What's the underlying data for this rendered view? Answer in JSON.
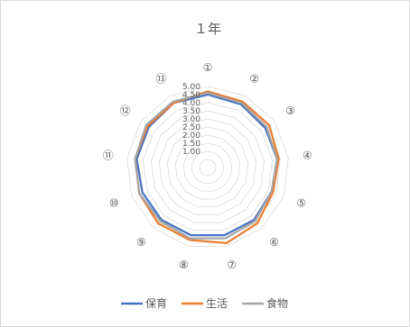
{
  "chart_data": {
    "type": "radar",
    "title": "１年",
    "categories": [
      "①",
      "②",
      "③",
      "④",
      "⑤",
      "⑥",
      "⑦",
      "⑧",
      "⑨",
      "⑩",
      "⑪",
      "⑫",
      "⑬"
    ],
    "rlim": [
      0,
      5
    ],
    "rticks": [
      "1.00",
      "1.50",
      "2.00",
      "2.50",
      "3.00",
      "3.50",
      "4.00",
      "4.50",
      "5.00"
    ],
    "grid": true,
    "legend_position": "bottom",
    "series": [
      {
        "name": "保育",
        "color": "#4472c4",
        "values": [
          4.5,
          4.4,
          4.3,
          4.3,
          4.2,
          4.3,
          4.3,
          4.3,
          4.3,
          4.3,
          4.4,
          4.4,
          4.5
        ]
      },
      {
        "name": "生活",
        "color": "#ed7d31",
        "values": [
          4.7,
          4.6,
          4.6,
          4.4,
          4.3,
          4.6,
          4.8,
          4.6,
          4.6,
          4.5,
          4.5,
          4.5,
          4.5
        ]
      },
      {
        "name": "食物",
        "color": "#a5a5a5",
        "values": [
          4.6,
          4.5,
          4.4,
          4.3,
          4.2,
          4.4,
          4.5,
          4.5,
          4.4,
          4.5,
          4.5,
          4.6,
          4.6
        ]
      }
    ]
  }
}
